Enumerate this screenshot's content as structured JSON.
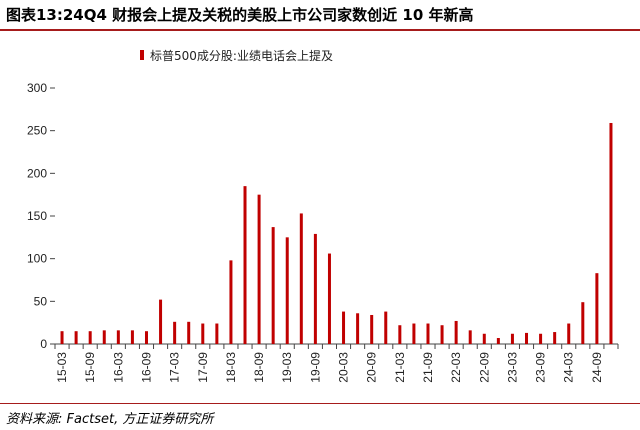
{
  "header": {
    "title": "图表13:24Q4 财报会上提及关税的美股上市公司家数创近 10 年新高"
  },
  "footer": {
    "source": "资料来源: Factset, 方正证券研究所"
  },
  "chart_data": {
    "type": "bar",
    "title": "",
    "xlabel": "",
    "ylabel": "",
    "ylim": [
      0,
      300
    ],
    "yticks": [
      0,
      50,
      100,
      150,
      200,
      250,
      300
    ],
    "grid": false,
    "legend_position": "top-left",
    "bar_color": "#c00000",
    "categories": [
      "15-03",
      "15-06",
      "15-09",
      "15-12",
      "16-03",
      "16-06",
      "16-09",
      "16-12",
      "17-03",
      "17-06",
      "17-09",
      "17-12",
      "18-03",
      "18-06",
      "18-09",
      "18-12",
      "19-03",
      "19-06",
      "19-09",
      "19-12",
      "20-03",
      "20-06",
      "20-09",
      "20-12",
      "21-03",
      "21-06",
      "21-09",
      "21-12",
      "22-03",
      "22-06",
      "22-09",
      "22-12",
      "23-03",
      "23-06",
      "23-09",
      "23-12",
      "24-03",
      "24-06",
      "24-09",
      "24-12"
    ],
    "tick_labels": [
      "15-03",
      "15-09",
      "16-03",
      "16-09",
      "17-03",
      "17-09",
      "18-03",
      "18-09",
      "19-03",
      "19-09",
      "20-03",
      "20-09",
      "21-03",
      "21-09",
      "22-03",
      "22-09",
      "23-03",
      "23-09",
      "24-03",
      "24-09"
    ],
    "series": [
      {
        "name": "标普500成分股:业绩电话会上提及",
        "values": [
          15,
          15,
          15,
          16,
          16,
          16,
          15,
          52,
          26,
          26,
          24,
          24,
          98,
          185,
          175,
          137,
          125,
          153,
          129,
          106,
          38,
          36,
          34,
          38,
          22,
          24,
          24,
          22,
          27,
          16,
          12,
          7,
          12,
          13,
          12,
          14,
          24,
          49,
          83,
          259
        ]
      }
    ]
  }
}
